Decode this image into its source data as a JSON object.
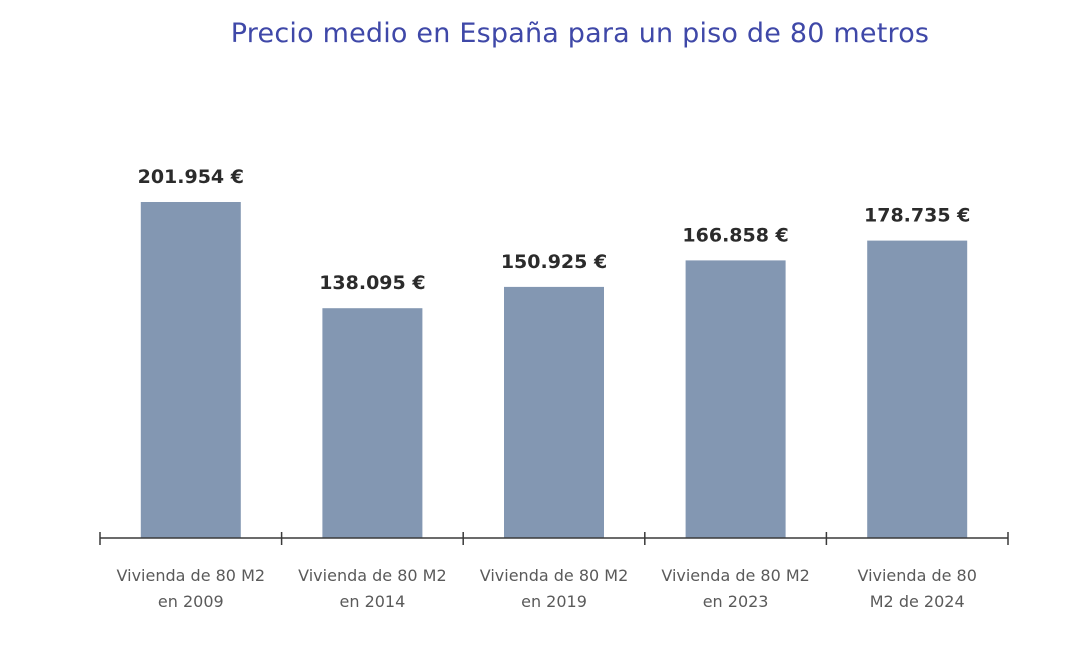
{
  "chart_data": {
    "type": "bar",
    "title": "Precio medio en España para un piso de 80 metros",
    "categories": [
      [
        "Vivienda de 80 M2",
        "en 2009"
      ],
      [
        "Vivienda de 80 M2",
        "en 2014"
      ],
      [
        "Vivienda de 80 M2",
        "en 2019"
      ],
      [
        "Vivienda de 80 M2",
        "en 2023"
      ],
      [
        "Vivienda de 80",
        "M2 de 2024"
      ]
    ],
    "values": [
      201954,
      138095,
      150925,
      166858,
      178735
    ],
    "value_labels": [
      "201.954 €",
      "138.095 €",
      "150.925 €",
      "166.858 €",
      "178.735 €"
    ],
    "ylim": [
      0,
      201954
    ],
    "bar_color": "#8397b2",
    "axis_color": "#3a3a3a",
    "grid": false,
    "legend": "none"
  }
}
